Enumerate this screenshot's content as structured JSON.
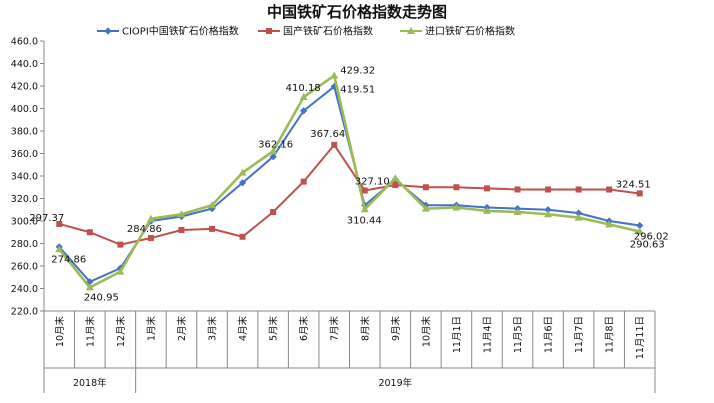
{
  "chart_data": {
    "type": "line",
    "title": "中国铁矿石价格指数走势图",
    "xlabel": "",
    "ylabel": "",
    "ylim": [
      220,
      460
    ],
    "ytick_step": 20,
    "yticks": [
      "220.0",
      "240.0",
      "260.0",
      "280.0",
      "300.0",
      "320.0",
      "340.0",
      "360.0",
      "380.0",
      "400.0",
      "420.0",
      "440.0",
      "460.0"
    ],
    "grid": false,
    "legend": "top",
    "categories": [
      "10月末",
      "11月末",
      "12月末",
      "1月末",
      "2月末",
      "3月末",
      "4月末",
      "5月末",
      "6月末",
      "7月末",
      "8月末",
      "9月末",
      "10月末",
      "11月1日",
      "11月4日",
      "11月5日",
      "11月6日",
      "11月7日",
      "11月8日",
      "11月11日"
    ],
    "year_groups": [
      {
        "label": "2018年",
        "start": 0,
        "end": 2
      },
      {
        "label": "2019年",
        "start": 3,
        "end": 19
      }
    ],
    "series": [
      {
        "name": "CIOPI中国铁矿石价格指数",
        "color": "#4472C4",
        "marker": "diamond",
        "values": [
          277,
          246,
          258,
          300,
          304,
          311,
          334,
          357.16,
          398,
          419.51,
          314,
          337,
          314,
          314,
          312,
          311,
          310,
          307,
          300,
          296.02
        ]
      },
      {
        "name": "国产铁矿石价格指数",
        "color": "#C0504D",
        "marker": "square",
        "values": [
          297.37,
          290,
          279,
          284.86,
          292,
          293,
          286,
          308,
          335,
          367.64,
          327.1,
          332,
          330,
          330,
          329,
          328,
          328,
          328,
          328,
          324.51
        ]
      },
      {
        "name": "进口铁矿石价格指数",
        "color": "#9BBB59",
        "marker": "triangle",
        "values": [
          274.86,
          240.95,
          255,
          302,
          306,
          314,
          343,
          362,
          410.18,
          429.32,
          310.44,
          338,
          311,
          312,
          309,
          308,
          306,
          303,
          297,
          290.63
        ]
      }
    ],
    "data_labels": [
      "297.37",
      "274.86",
      "240.95",
      "284.86",
      "362.16",
      "410.18",
      "419.51",
      "429.32",
      "367.64",
      "327.10",
      "310.44",
      "324.51",
      "296.02",
      "290.63"
    ]
  }
}
